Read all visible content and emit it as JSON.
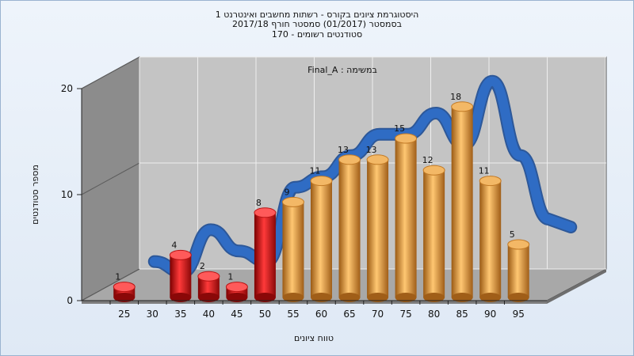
{
  "title_lines": [
    "היסטוגרמת ציונים בקורס - רשתות מחשבים ואינטרנט 1",
    "בסמסטר (01/2017) סמסטר חורף 2017/18",
    "סטודנטים רשומים - 170"
  ],
  "chart_data": {
    "type": "bar",
    "annotation": "Final_A : במשימה",
    "xlabel": "טווח ציונים",
    "ylabel": "מספר סטודנטים",
    "ylim": [
      0,
      20
    ],
    "y_ticks": [
      "0",
      "10",
      "20"
    ],
    "x_ticks": [
      "25",
      "30",
      "35",
      "40",
      "45",
      "50",
      "55",
      "60",
      "65",
      "70",
      "75",
      "80",
      "85",
      "90",
      "95"
    ],
    "categories": [
      "25",
      "30",
      "35",
      "40",
      "45",
      "50",
      "55",
      "60",
      "65",
      "70",
      "75",
      "80",
      "85",
      "90",
      "95"
    ],
    "values": [
      1,
      null,
      4,
      2,
      1,
      8,
      9,
      11,
      13,
      13,
      15,
      12,
      18,
      11,
      5
    ],
    "value_labels": [
      "1",
      "",
      "4",
      "2",
      "1",
      "8",
      "9",
      "11",
      "13",
      "13",
      "15",
      "12",
      "18",
      "11",
      "5"
    ],
    "bar_colors": [
      "#e02020",
      "#e02020",
      "#e02020",
      "#e02020",
      "#e02020",
      "#e02020",
      "#e8a040",
      "#e8a040",
      "#e8a040",
      "#e8a040",
      "#e8a040",
      "#e8a040",
      "#e8a040",
      "#e8a040",
      "#e8a040"
    ],
    "curve_color": "#2f6cc4",
    "grid": true,
    "style": "3d-cylinder"
  }
}
